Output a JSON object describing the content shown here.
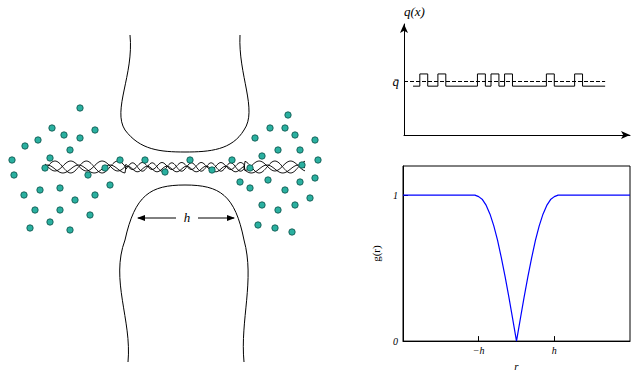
{
  "diagram": {
    "gap_label": "h"
  },
  "chart_data": [
    {
      "type": "line",
      "ylabel": "q(x)",
      "line_style": "step",
      "color": "#000000",
      "tick_labels": false,
      "x": [
        0.4,
        0.7,
        1.05,
        1.5,
        1.85,
        3.25,
        3.6,
        3.85,
        4.2,
        4.45,
        4.8,
        6.3,
        6.65,
        7.55,
        7.9,
        8.9
      ],
      "values": [
        4.4,
        5.5,
        4.4,
        5.5,
        4.4,
        5.5,
        4.4,
        5.5,
        4.4,
        5.5,
        4.4,
        5.5,
        4.4,
        5.5,
        4.4,
        4.4
      ],
      "mean": 4.8,
      "mean_label": "q̄",
      "xlim": [
        0,
        10
      ],
      "ylim": [
        0,
        10
      ]
    },
    {
      "type": "line",
      "ylabel": "g(r)",
      "xlabel": "r",
      "color": "#0000ff",
      "x": [
        -3,
        -1.2,
        -1.1,
        -1.0,
        -0.9,
        -0.8,
        -0.7,
        -0.6,
        -0.5,
        -0.4,
        -0.3,
        -0.2,
        -0.1,
        0,
        0.1,
        0.2,
        0.3,
        0.4,
        0.5,
        0.6,
        0.7,
        0.8,
        0.9,
        1.0,
        1.1,
        1.2,
        3
      ],
      "values": [
        1,
        1,
        1,
        0.99,
        0.97,
        0.93,
        0.87,
        0.79,
        0.69,
        0.57,
        0.44,
        0.3,
        0.15,
        0,
        0.15,
        0.3,
        0.44,
        0.57,
        0.69,
        0.79,
        0.87,
        0.93,
        0.97,
        0.99,
        1,
        1,
        1
      ],
      "xlim": [
        -3,
        3
      ],
      "ylim": [
        0,
        1.2
      ],
      "xticks": [
        {
          "value": -1,
          "label": "−h"
        },
        {
          "value": 1,
          "label": "h"
        }
      ],
      "yticks": [
        0,
        1
      ]
    }
  ]
}
